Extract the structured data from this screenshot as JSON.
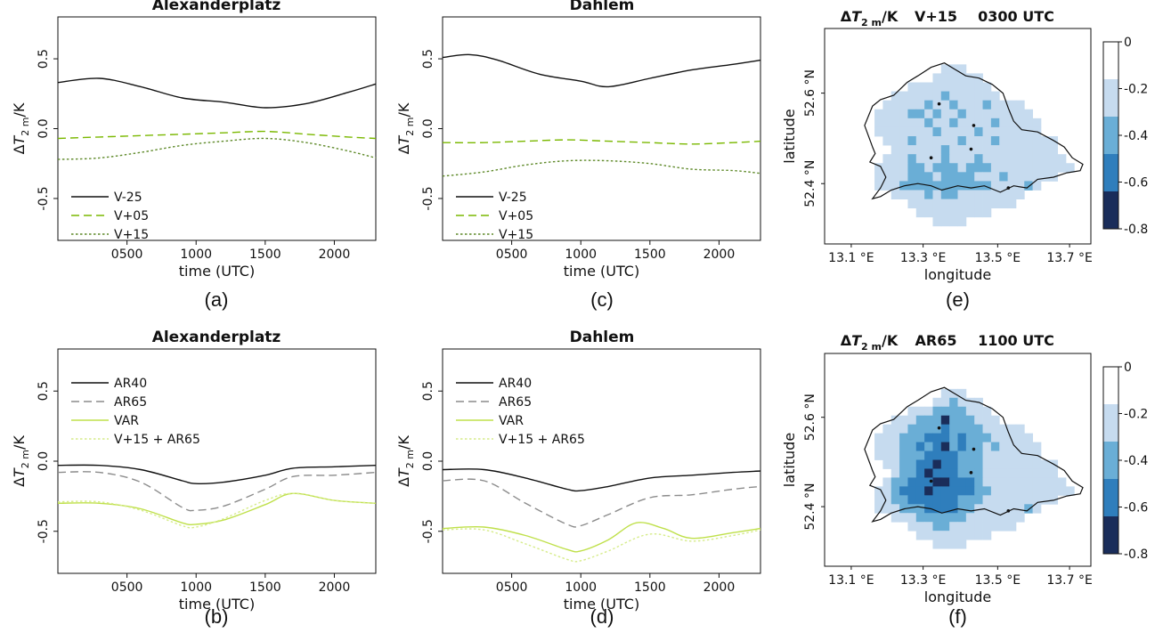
{
  "chart_data": [
    {
      "id": "a",
      "type": "line",
      "panel_label": "(a)",
      "title": "Alexanderplatz",
      "xlabel": "time (UTC)",
      "ylabel": "ΔT2 m/K",
      "xlim": [
        0,
        2300
      ],
      "ylim": [
        -0.8,
        0.8
      ],
      "xticks": [
        500,
        1000,
        1500,
        2000
      ],
      "xtick_labels": [
        "0500",
        "1000",
        "1500",
        "2000"
      ],
      "yticks": [
        -0.5,
        0.0,
        0.5
      ],
      "ytick_labels": [
        "-0.5",
        "0.0",
        "0.5"
      ],
      "legend_position": "bottom-left",
      "series": [
        {
          "name": "V-25",
          "color": "#111111",
          "dash": "solid",
          "x": [
            0,
            300,
            600,
            900,
            1200,
            1500,
            1800,
            2100,
            2300
          ],
          "values": [
            0.33,
            0.36,
            0.3,
            0.22,
            0.19,
            0.15,
            0.18,
            0.26,
            0.32
          ]
        },
        {
          "name": "V+05",
          "color": "#7ab800",
          "dash": "dashed",
          "x": [
            0,
            300,
            600,
            900,
            1200,
            1500,
            1800,
            2100,
            2300
          ],
          "values": [
            -0.07,
            -0.06,
            -0.05,
            -0.04,
            -0.03,
            -0.02,
            -0.04,
            -0.06,
            -0.07
          ]
        },
        {
          "name": "V+15",
          "color": "#5f8a2a",
          "dash": "dotted",
          "x": [
            0,
            300,
            600,
            900,
            1200,
            1500,
            1800,
            2100,
            2300
          ],
          "values": [
            -0.22,
            -0.21,
            -0.17,
            -0.12,
            -0.09,
            -0.07,
            -0.1,
            -0.16,
            -0.21
          ]
        }
      ]
    },
    {
      "id": "c",
      "type": "line",
      "panel_label": "(c)",
      "title": "Dahlem",
      "xlabel": "time (UTC)",
      "ylabel": "ΔT2 m/K",
      "xlim": [
        0,
        2300
      ],
      "ylim": [
        -0.8,
        0.8
      ],
      "xticks": [
        500,
        1000,
        1500,
        2000
      ],
      "xtick_labels": [
        "0500",
        "1000",
        "1500",
        "2000"
      ],
      "yticks": [
        -0.5,
        0.0,
        0.5
      ],
      "ytick_labels": [
        "-0.5",
        "0.0",
        "0.5"
      ],
      "legend_position": "bottom-left",
      "series": [
        {
          "name": "V-25",
          "color": "#111111",
          "dash": "solid",
          "x": [
            0,
            200,
            400,
            700,
            1000,
            1200,
            1500,
            1800,
            2100,
            2300
          ],
          "values": [
            0.51,
            0.53,
            0.49,
            0.39,
            0.34,
            0.3,
            0.36,
            0.42,
            0.46,
            0.49
          ]
        },
        {
          "name": "V+05",
          "color": "#7ab800",
          "dash": "dashed",
          "x": [
            0,
            300,
            600,
            900,
            1200,
            1500,
            1800,
            2100,
            2300
          ],
          "values": [
            -0.1,
            -0.1,
            -0.09,
            -0.08,
            -0.09,
            -0.1,
            -0.11,
            -0.1,
            -0.09
          ]
        },
        {
          "name": "V+15",
          "color": "#5f8a2a",
          "dash": "dotted",
          "x": [
            0,
            300,
            600,
            900,
            1200,
            1500,
            1800,
            2100,
            2300
          ],
          "values": [
            -0.34,
            -0.31,
            -0.26,
            -0.23,
            -0.23,
            -0.25,
            -0.29,
            -0.3,
            -0.32
          ]
        }
      ]
    },
    {
      "id": "b",
      "type": "line",
      "panel_label": "(b)",
      "title": "Alexanderplatz",
      "xlabel": "time (UTC)",
      "ylabel": "ΔT2 m/K",
      "xlim": [
        0,
        2300
      ],
      "ylim": [
        -0.8,
        0.8
      ],
      "xticks": [
        500,
        1000,
        1500,
        2000
      ],
      "xtick_labels": [
        "0500",
        "1000",
        "1500",
        "2000"
      ],
      "yticks": [
        -0.5,
        0.0,
        0.5
      ],
      "ytick_labels": [
        "-0.5",
        "0.0",
        "0.5"
      ],
      "legend_position": "top-left",
      "series": [
        {
          "name": "AR40",
          "color": "#111111",
          "dash": "solid",
          "x": [
            0,
            300,
            600,
            900,
            1000,
            1200,
            1500,
            1700,
            2000,
            2300
          ],
          "values": [
            -0.03,
            -0.03,
            -0.06,
            -0.14,
            -0.16,
            -0.15,
            -0.1,
            -0.05,
            -0.04,
            -0.03
          ]
        },
        {
          "name": "AR65",
          "color": "#8c8c8c",
          "dash": "dashed",
          "x": [
            0,
            300,
            600,
            900,
            1000,
            1200,
            1500,
            1700,
            2000,
            2300
          ],
          "values": [
            -0.08,
            -0.08,
            -0.15,
            -0.33,
            -0.35,
            -0.32,
            -0.2,
            -0.11,
            -0.1,
            -0.08
          ]
        },
        {
          "name": "VAR",
          "color": "#bfe04a",
          "dash": "solid",
          "x": [
            0,
            300,
            600,
            900,
            1000,
            1200,
            1500,
            1700,
            2000,
            2300
          ],
          "values": [
            -0.3,
            -0.3,
            -0.34,
            -0.44,
            -0.45,
            -0.42,
            -0.31,
            -0.23,
            -0.28,
            -0.3
          ]
        },
        {
          "name": "V+15 + AR65",
          "color": "#d6ec8a",
          "dash": "dotted",
          "x": [
            0,
            300,
            600,
            900,
            1000,
            1200,
            1500,
            1700,
            2000,
            2300
          ],
          "values": [
            -0.29,
            -0.29,
            -0.35,
            -0.46,
            -0.47,
            -0.41,
            -0.28,
            -0.23,
            -0.28,
            -0.3
          ]
        }
      ]
    },
    {
      "id": "d",
      "type": "line",
      "panel_label": "(d)",
      "title": "Dahlem",
      "xlabel": "time (UTC)",
      "ylabel": "ΔT2 m/K",
      "xlim": [
        0,
        2300
      ],
      "ylim": [
        -0.8,
        0.8
      ],
      "xticks": [
        500,
        1000,
        1500,
        2000
      ],
      "xtick_labels": [
        "0500",
        "1000",
        "1500",
        "2000"
      ],
      "yticks": [
        -0.5,
        0.0,
        0.5
      ],
      "ytick_labels": [
        "-0.5",
        "0.0",
        "0.5"
      ],
      "legend_position": "top-left",
      "series": [
        {
          "name": "AR40",
          "color": "#111111",
          "dash": "solid",
          "x": [
            0,
            300,
            600,
            900,
            1000,
            1200,
            1500,
            1800,
            2100,
            2300
          ],
          "values": [
            -0.06,
            -0.06,
            -0.12,
            -0.2,
            -0.21,
            -0.18,
            -0.12,
            -0.1,
            -0.08,
            -0.07
          ]
        },
        {
          "name": "AR65",
          "color": "#8c8c8c",
          "dash": "dashed",
          "x": [
            0,
            300,
            600,
            900,
            1000,
            1200,
            1500,
            1800,
            2100,
            2300
          ],
          "values": [
            -0.14,
            -0.14,
            -0.3,
            -0.45,
            -0.46,
            -0.38,
            -0.26,
            -0.24,
            -0.2,
            -0.18
          ]
        },
        {
          "name": "VAR",
          "color": "#bfe04a",
          "dash": "solid",
          "x": [
            0,
            300,
            600,
            900,
            1000,
            1200,
            1400,
            1600,
            1800,
            2100,
            2300
          ],
          "values": [
            -0.48,
            -0.47,
            -0.53,
            -0.63,
            -0.64,
            -0.56,
            -0.44,
            -0.48,
            -0.55,
            -0.51,
            -0.48
          ]
        },
        {
          "name": "V+15 + AR65",
          "color": "#d6ec8a",
          "dash": "dotted",
          "x": [
            0,
            300,
            600,
            900,
            1000,
            1200,
            1500,
            1800,
            2100,
            2300
          ],
          "values": [
            -0.49,
            -0.49,
            -0.59,
            -0.7,
            -0.71,
            -0.64,
            -0.52,
            -0.57,
            -0.53,
            -0.49
          ]
        }
      ]
    },
    {
      "id": "e",
      "type": "heatmap",
      "panel_label": "(e)",
      "title": "ΔT2 m/K     V+15     0300 UTC",
      "xlabel": "longitude",
      "ylabel": "latitude",
      "xticks": [
        "13.1 °E",
        "13.3 °E",
        "13.5 °E",
        "13.7 °E"
      ],
      "yticks": [
        "52.4 °N",
        "52.6 °N"
      ],
      "colorbar_ticks": [
        "0",
        "-0.2",
        "-0.4",
        "-0.6",
        "-0.8"
      ],
      "colorbar_colors": [
        "#ffffff",
        "#c6dbef",
        "#6aaed6",
        "#2f7ebc",
        "#1a2d5a"
      ],
      "legend_position": "right",
      "grid": {
        "rows": 24,
        "cols": 32,
        "classes": [
          "00000000000000000000000000000000",
          "00000000000000000000000000000000",
          "00000000000000000000000000000000",
          "00000000000000000000000000000000",
          "00000000000000111000000000000000",
          "00000000000001111110000000000000",
          "00000000001111111111000000000000",
          "00000000111111211111100000000000",
          "00000001111121121112111100000000",
          "00000011112212112111111110000000",
          "00000011111121121111211111000000",
          "00000011111112111121111111000000",
          "00000001112111112111211111110000",
          "00000000111111211111111111110000",
          "00000001112111211121111111111000",
          "00000011112212221222111111111100",
          "00000011112221222211121111110000",
          "00000011122222222222111121000000",
          "00000000111121221111111100000000",
          "00000000001111111111111000000000",
          "00000000000111111111000000000000",
          "00000000000001111000000000000000",
          "00000000000000000000000000000000",
          "00000000000000000000000000000000"
        ]
      }
    },
    {
      "id": "f",
      "type": "heatmap",
      "panel_label": "(f)",
      "title": "ΔT2 m/K     AR65     1100 UTC",
      "xlabel": "longitude",
      "ylabel": "latitude",
      "xticks": [
        "13.1 °E",
        "13.3 °E",
        "13.5 °E",
        "13.7 °E"
      ],
      "yticks": [
        "52.4 °N",
        "52.6 °N"
      ],
      "colorbar_ticks": [
        "0",
        "-0.2",
        "-0.4",
        "-0.6",
        "-0.8"
      ],
      "colorbar_colors": [
        "#ffffff",
        "#c6dbef",
        "#6aaed6",
        "#2f7ebc",
        "#1a2d5a"
      ],
      "legend_position": "right",
      "grid": {
        "rows": 24,
        "cols": 32,
        "classes": [
          "00000000000000000000000000000000",
          "00000000000000000000000000000000",
          "00000000000000000000000000000000",
          "00000000000000000000000000000000",
          "00000000000000111000000000000000",
          "00000000000001121110000000000000",
          "00000000001112222111000000000000",
          "00000000111222422211100000000000",
          "00000001112222322221111100000000",
          "00000011122233323222111110000000",
          "00000011122323423221211111000000",
          "00000011122233332221111111000000",
          "00000001122334332221111111110000",
          "00000000122343332221111111110000",
          "00000001223334433321111111111000",
          "00000011233343333322111111111100",
          "00000011223333332221111111110000",
          "00000011122233332211111121000000",
          "00000000111222222111111100000000",
          "00000000001112211111111000000000",
          "00000000000111111111000000000000",
          "00000000000001111000000000000000",
          "00000000000000000000000000000000",
          "00000000000000000000000000000000"
        ]
      }
    }
  ]
}
